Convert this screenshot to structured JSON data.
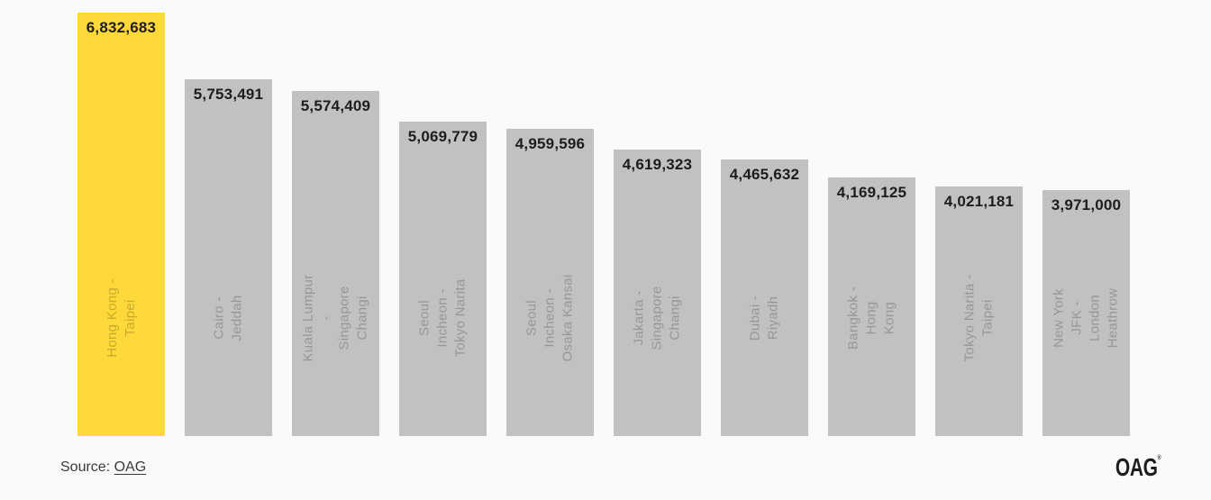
{
  "chart_data": {
    "type": "bar",
    "orientation": "vertical",
    "title": "",
    "xlabel": "",
    "ylabel": "",
    "grid": false,
    "legend": false,
    "ylim": [
      0,
      6832683
    ],
    "categories": [
      "Hong Kong - Taipei",
      "Cairo - Jeddah",
      "Kuala Lumpur - Singapore Changi",
      "Seoul Incheon - Tokyo Narita",
      "Seoul Incheon - Osaka Kansai",
      "Jakarta - Singapore Changi",
      "Dubai - Riyadh",
      "Bangkok - Hong Kong",
      "Tokyo Narita - Taipei",
      "New York JFK - London Heathrow"
    ],
    "category_label_lines": [
      [
        "Hong Kong -",
        "Taipei"
      ],
      [
        "Cairo - Jeddah"
      ],
      [
        "Kuala Lumpur -",
        "Singapore Changi"
      ],
      [
        "Seoul Incheon -",
        "Tokyo Narita"
      ],
      [
        "Seoul Incheon -",
        "Osaka Kansai"
      ],
      [
        "Jakarta -",
        "Singapore Changi"
      ],
      [
        "Dubai - Riyadh"
      ],
      [
        "Bangkok - Hong",
        "Kong"
      ],
      [
        "Tokyo Narita -",
        "Taipei"
      ],
      [
        "New York JFK -",
        "London Heathrow"
      ]
    ],
    "values": [
      6832683,
      5753491,
      5574409,
      5069779,
      4959596,
      4619323,
      4465632,
      4169125,
      4021181,
      3971000
    ],
    "value_labels": [
      "6,832,683",
      "5,753,491",
      "5,574,409",
      "5,069,779",
      "4,959,596",
      "4,619,323",
      "4,465,632",
      "4,169,125",
      "4,021,181",
      "3,971,000"
    ],
    "highlight_index": 0,
    "bar_color_default": "#c1c1c1",
    "bar_color_highlight": "#ffd93a",
    "value_label_color": "#1d1d1b",
    "background_color": "#fafafa"
  },
  "source": {
    "prefix": "Source: ",
    "link_text": "OAG"
  },
  "branding": {
    "logo_text": "OAG",
    "trademark": "®"
  }
}
